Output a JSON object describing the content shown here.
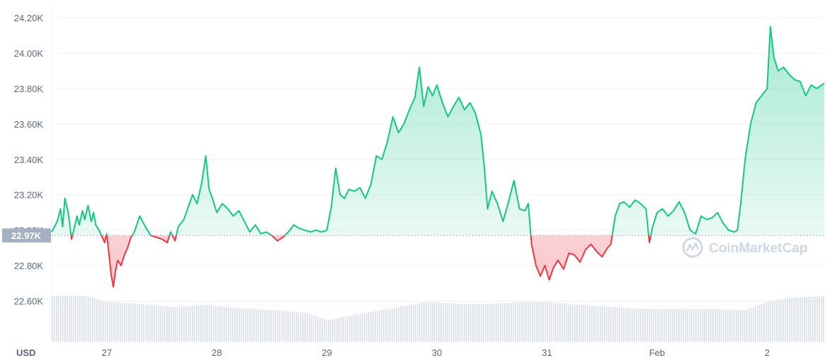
{
  "chart_data": {
    "type": "line",
    "currency_label": "USD",
    "current_price_label": "22.97K",
    "baseline": 22970,
    "watermark": "CoinMarketCap",
    "ylim": [
      22370,
      24260
    ],
    "y_ticks": [
      {
        "value": 22600,
        "label": "22.60K"
      },
      {
        "value": 22800,
        "label": "22.80K"
      },
      {
        "value": 23000,
        "label": "23.00K"
      },
      {
        "value": 23200,
        "label": "23.20K"
      },
      {
        "value": 23400,
        "label": "23.40K"
      },
      {
        "value": 23600,
        "label": "23.60K"
      },
      {
        "value": 23800,
        "label": "23.80K"
      },
      {
        "value": 24000,
        "label": "24.00K"
      },
      {
        "value": 24200,
        "label": "24.20K"
      }
    ],
    "x_ticks": [
      {
        "t": 27,
        "label": "27"
      },
      {
        "t": 28,
        "label": "28"
      },
      {
        "t": 29,
        "label": "29"
      },
      {
        "t": 30,
        "label": "30"
      },
      {
        "t": 31,
        "label": "31"
      },
      {
        "t": 32,
        "label": "Feb"
      },
      {
        "t": 33,
        "label": "2"
      }
    ],
    "xlim": [
      26.5,
      33.52
    ],
    "colors": {
      "up": "#16c784",
      "down": "#ea3943",
      "grid": "#eff2f5",
      "volume": "#cfd6e4",
      "tag": "#a6b0c3",
      "baseline": "#8a94a6"
    },
    "series": [
      {
        "x": [
          26.5,
          26.55,
          26.58,
          26.6,
          26.62,
          26.65,
          26.68,
          26.7,
          26.73,
          26.75,
          26.78,
          26.8,
          26.83,
          26.86,
          26.88,
          26.9,
          26.93,
          26.96,
          26.98,
          27.0,
          27.04,
          27.06,
          27.08,
          27.1,
          27.13,
          27.16,
          27.19,
          27.22,
          27.25,
          27.3,
          27.35,
          27.4,
          27.45,
          27.5,
          27.55,
          27.58,
          27.62,
          27.65,
          27.7,
          27.74,
          27.78,
          27.82,
          27.86,
          27.9,
          27.93,
          27.96,
          28.0,
          28.05,
          28.1,
          28.15,
          28.2,
          28.25,
          28.3,
          28.35,
          28.4,
          28.45,
          28.5,
          28.55,
          28.6,
          28.65,
          28.7,
          28.75,
          28.8,
          28.85,
          28.9,
          28.95,
          29.0,
          29.04,
          29.08,
          29.12,
          29.16,
          29.2,
          29.25,
          29.3,
          29.35,
          29.4,
          29.45,
          29.5,
          29.55,
          29.6,
          29.65,
          29.7,
          29.75,
          29.8,
          29.84,
          29.88,
          29.92,
          29.96,
          30.0,
          30.05,
          30.1,
          30.15,
          30.2,
          30.25,
          30.3,
          30.35,
          30.4,
          30.43,
          30.46,
          30.5,
          30.55,
          30.6,
          30.65,
          30.7,
          30.75,
          30.8,
          30.83,
          30.86,
          30.9,
          30.94,
          30.98,
          31.02,
          31.06,
          31.1,
          31.15,
          31.2,
          31.25,
          31.3,
          31.35,
          31.4,
          31.45,
          31.5,
          31.55,
          31.58,
          31.62,
          31.66,
          31.7,
          31.75,
          31.8,
          31.85,
          31.9,
          31.93,
          31.96,
          32.0,
          32.05,
          32.1,
          32.15,
          32.2,
          32.25,
          32.3,
          32.35,
          32.4,
          32.45,
          32.5,
          32.55,
          32.6,
          32.65,
          32.7,
          32.73,
          32.76,
          32.8,
          32.85,
          32.9,
          32.95,
          33.0,
          33.03,
          33.06,
          33.1,
          33.15,
          33.2,
          33.25,
          33.3,
          33.35,
          33.4,
          33.45,
          33.52
        ],
        "y": [
          22990,
          23050,
          23120,
          23020,
          23180,
          23100,
          22950,
          23000,
          23080,
          23030,
          23110,
          23060,
          23140,
          23050,
          23100,
          23030,
          23000,
          22960,
          22930,
          22980,
          22750,
          22680,
          22770,
          22830,
          22800,
          22860,
          22900,
          22960,
          22990,
          23080,
          23020,
          22970,
          22960,
          22950,
          22930,
          22990,
          22940,
          23020,
          23060,
          23130,
          23200,
          23150,
          23260,
          23420,
          23230,
          23180,
          23100,
          23150,
          23120,
          23080,
          23110,
          23050,
          22990,
          23030,
          22980,
          22990,
          22970,
          22940,
          22960,
          22990,
          23030,
          23010,
          23000,
          22990,
          23000,
          22990,
          23000,
          23130,
          23350,
          23200,
          23180,
          23230,
          23220,
          23240,
          23180,
          23260,
          23420,
          23400,
          23500,
          23640,
          23550,
          23600,
          23680,
          23750,
          23920,
          23700,
          23810,
          23760,
          23820,
          23720,
          23640,
          23700,
          23750,
          23680,
          23720,
          23660,
          23540,
          23360,
          23120,
          23220,
          23150,
          23050,
          23160,
          23280,
          23120,
          23110,
          23150,
          22920,
          22800,
          22740,
          22800,
          22720,
          22790,
          22830,
          22780,
          22870,
          22860,
          22820,
          22890,
          22920,
          22880,
          22850,
          22900,
          22920,
          23080,
          23150,
          23160,
          23130,
          23170,
          23150,
          23120,
          22930,
          23020,
          23100,
          23120,
          23080,
          23110,
          23160,
          23100,
          23000,
          22980,
          23080,
          23060,
          23070,
          23100,
          23040,
          23000,
          22990,
          23000,
          23150,
          23400,
          23600,
          23720,
          23760,
          23800,
          24150,
          23980,
          23900,
          23920,
          23880,
          23850,
          23840,
          23760,
          23820,
          23800,
          23830
        ]
      }
    ],
    "volume": {
      "x": [
        26.5,
        26.8,
        27.0,
        27.3,
        27.6,
        27.9,
        28.2,
        28.5,
        28.8,
        29.0,
        29.3,
        29.6,
        29.9,
        30.2,
        30.5,
        30.8,
        31.0,
        31.3,
        31.6,
        31.9,
        32.2,
        32.5,
        32.8,
        33.0,
        33.2,
        33.52
      ],
      "v": [
        0.9,
        0.9,
        0.78,
        0.74,
        0.68,
        0.72,
        0.66,
        0.62,
        0.57,
        0.42,
        0.55,
        0.66,
        0.78,
        0.74,
        0.74,
        0.78,
        0.78,
        0.72,
        0.68,
        0.64,
        0.64,
        0.64,
        0.62,
        0.78,
        0.86,
        0.9
      ]
    }
  }
}
